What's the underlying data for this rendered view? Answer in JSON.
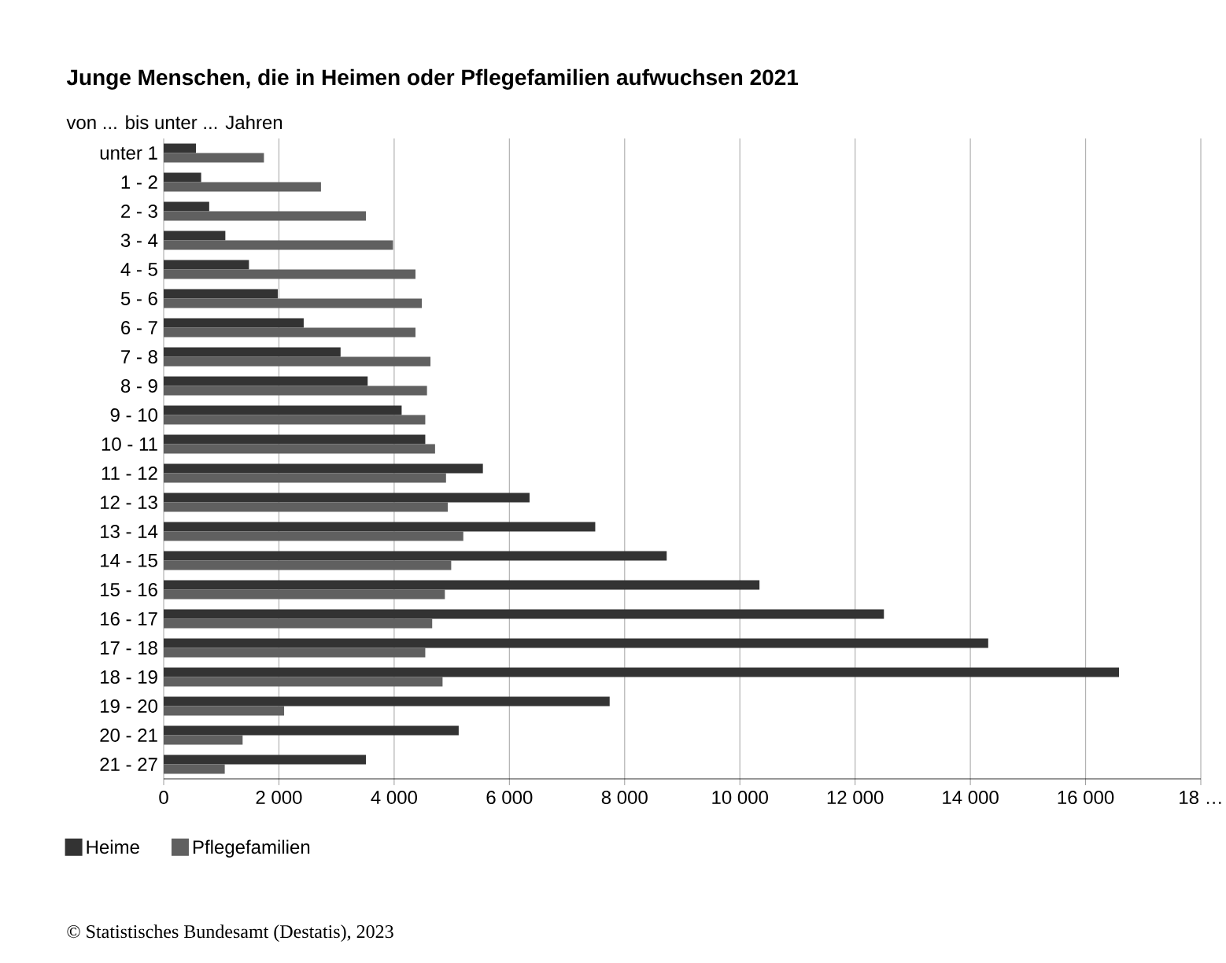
{
  "chart_data": {
    "type": "bar",
    "orientation": "horizontal",
    "title": "Junge Menschen, die in Heimen oder Pflegefamilien aufwuchsen 2021",
    "ylabel": "von ... bis unter ... Jahren",
    "categories": [
      "unter 1",
      "1 - 2",
      "2 - 3",
      "3 - 4",
      "4 - 5",
      "5 - 6",
      "6 - 7",
      "7 - 8",
      "8 - 9",
      "9 - 10",
      "10 - 11",
      "11 - 12",
      "12 - 13",
      "13 - 14",
      "14 - 15",
      "15 - 16",
      "16 - 17",
      "17 - 18",
      "18 - 19",
      "19 - 20",
      "20 - 21",
      "21 - 27"
    ],
    "series": [
      {
        "name": "Heime",
        "color": "#333333",
        "values": [
          560,
          650,
          790,
          1070,
          1480,
          1980,
          2430,
          3070,
          3540,
          4130,
          4540,
          5540,
          6350,
          7490,
          8730,
          10340,
          12500,
          14310,
          16580,
          7740,
          5120,
          3510
        ]
      },
      {
        "name": "Pflegefamilien",
        "color": "#606060",
        "values": [
          1740,
          2730,
          3510,
          3980,
          4370,
          4480,
          4370,
          4630,
          4570,
          4540,
          4710,
          4900,
          4930,
          5200,
          4990,
          4880,
          4660,
          4540,
          4840,
          2090,
          1370,
          1060
        ]
      }
    ],
    "xlim": [
      0,
      18000
    ],
    "xticks": [
      0,
      {
        "value": 2000,
        "label": "2 000"
      },
      {
        "value": 4000,
        "label": "4 000"
      },
      {
        "value": 6000,
        "label": "6 000"
      },
      {
        "value": 8000,
        "label": "8 000"
      },
      {
        "value": 10000,
        "label": "10 000"
      },
      {
        "value": 12000,
        "label": "12 000"
      },
      {
        "value": 14000,
        "label": "14 000"
      },
      {
        "value": 16000,
        "label": "16 000"
      },
      {
        "value": 18000,
        "label": "18 …"
      }
    ],
    "grid": "x",
    "legend": "bottom left",
    "annotations": [
      "© Statistisches Bundesamt (Destatis), 2023"
    ]
  }
}
